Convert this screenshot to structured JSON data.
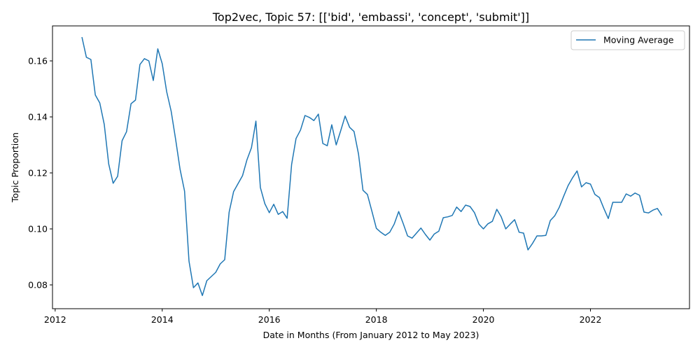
{
  "chart_data": {
    "type": "line",
    "title": "Top2vec, Topic 57: [['bid', 'embassi', 'concept', 'submit']]",
    "xlabel": "Date in Months (From January 2012 to May 2023)",
    "ylabel": "Topic Proportion",
    "xlim": [
      2011.95,
      2023.85
    ],
    "ylim": [
      0.0715,
      0.1725
    ],
    "xticks": [
      2012,
      2014,
      2016,
      2018,
      2020,
      2022
    ],
    "xtick_labels": [
      "2012",
      "2014",
      "2016",
      "2018",
      "2020",
      "2022"
    ],
    "yticks": [
      0.08,
      0.1,
      0.12,
      0.14,
      0.16
    ],
    "ytick_labels": [
      "0.08",
      "0.10",
      "0.12",
      "0.14",
      "0.16"
    ],
    "grid": false,
    "legend": {
      "position": "upper right"
    },
    "color": "#1f77b4",
    "series": [
      {
        "name": "Moving Average",
        "x": [
          2012.5,
          2012.583,
          2012.667,
          2012.75,
          2012.833,
          2012.917,
          2013.0,
          2013.083,
          2013.167,
          2013.25,
          2013.333,
          2013.417,
          2013.5,
          2013.583,
          2013.667,
          2013.75,
          2013.833,
          2013.917,
          2014.0,
          2014.083,
          2014.167,
          2014.25,
          2014.333,
          2014.417,
          2014.5,
          2014.583,
          2014.667,
          2014.75,
          2014.833,
          2014.917,
          2015.0,
          2015.083,
          2015.167,
          2015.25,
          2015.333,
          2015.417,
          2015.5,
          2015.583,
          2015.667,
          2015.75,
          2015.833,
          2015.917,
          2016.0,
          2016.083,
          2016.167,
          2016.25,
          2016.333,
          2016.417,
          2016.5,
          2016.583,
          2016.667,
          2016.75,
          2016.833,
          2016.917,
          2017.0,
          2017.083,
          2017.167,
          2017.25,
          2017.333,
          2017.417,
          2017.5,
          2017.583,
          2017.667,
          2017.75,
          2017.833,
          2017.917,
          2018.0,
          2018.083,
          2018.167,
          2018.25,
          2018.333,
          2018.417,
          2018.5,
          2018.583,
          2018.667,
          2018.75,
          2018.833,
          2018.917,
          2019.0,
          2019.083,
          2019.167,
          2019.25,
          2019.333,
          2019.417,
          2019.5,
          2019.583,
          2019.667,
          2019.75,
          2019.833,
          2019.917,
          2020.0,
          2020.083,
          2020.167,
          2020.25,
          2020.333,
          2020.417,
          2020.5,
          2020.583,
          2020.667,
          2020.75,
          2020.833,
          2020.917,
          2021.0,
          2021.083,
          2021.167,
          2021.25,
          2021.333,
          2021.417,
          2021.5,
          2021.583,
          2021.667,
          2021.75,
          2021.833,
          2021.917,
          2022.0,
          2022.083,
          2022.167,
          2022.25,
          2022.333,
          2022.417,
          2022.5,
          2022.583,
          2022.667,
          2022.75,
          2022.833,
          2022.917,
          2023.0,
          2023.083,
          2023.167,
          2023.25,
          2023.333
        ],
        "values": [
          0.1685,
          0.1613,
          0.1605,
          0.1478,
          0.145,
          0.1373,
          0.1232,
          0.1163,
          0.1188,
          0.1315,
          0.1347,
          0.1447,
          0.146,
          0.1587,
          0.1608,
          0.16,
          0.153,
          0.1643,
          0.159,
          0.149,
          0.142,
          0.132,
          0.1213,
          0.1135,
          0.0885,
          0.079,
          0.0807,
          0.0762,
          0.0815,
          0.083,
          0.0845,
          0.0875,
          0.089,
          0.106,
          0.1133,
          0.1162,
          0.119,
          0.1247,
          0.129,
          0.1385,
          0.1148,
          0.109,
          0.1058,
          0.1088,
          0.1052,
          0.1062,
          0.1038,
          0.123,
          0.1323,
          0.1353,
          0.1405,
          0.1398,
          0.1387,
          0.141,
          0.1305,
          0.1297,
          0.1372,
          0.13,
          0.135,
          0.1403,
          0.1363,
          0.1348,
          0.1267,
          0.1138,
          0.1123,
          0.1063,
          0.1002,
          0.0988,
          0.0977,
          0.0988,
          0.1017,
          0.1062,
          0.102,
          0.0975,
          0.0967,
          0.0985,
          0.1003,
          0.098,
          0.096,
          0.0982,
          0.0992,
          0.104,
          0.1043,
          0.1048,
          0.1078,
          0.1062,
          0.1085,
          0.108,
          0.1058,
          0.1017,
          0.1,
          0.1018,
          0.1027,
          0.107,
          0.1043,
          0.1,
          0.1017,
          0.1033,
          0.0988,
          0.0985,
          0.0925,
          0.0948,
          0.0975,
          0.0975,
          0.0977,
          0.103,
          0.1047,
          0.1077,
          0.1117,
          0.1155,
          0.1183,
          0.1207,
          0.115,
          0.1165,
          0.116,
          0.1123,
          0.1112,
          0.1073,
          0.1037,
          0.1095,
          0.1095,
          0.1095,
          0.1125,
          0.1117,
          0.1128,
          0.112,
          0.106,
          0.1057,
          0.1067,
          0.1073,
          0.1048
        ]
      }
    ]
  }
}
